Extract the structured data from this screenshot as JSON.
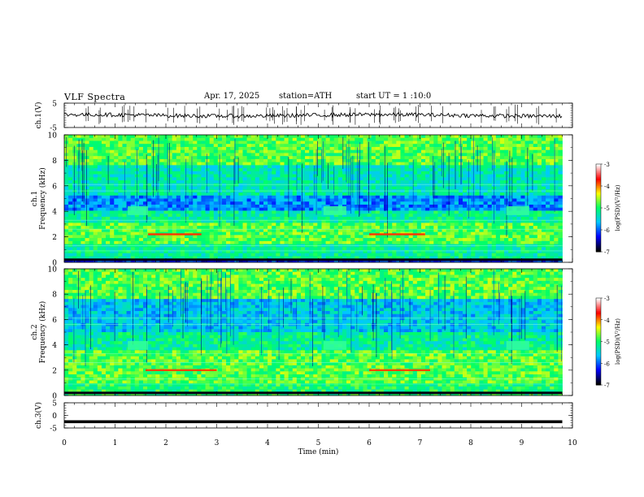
{
  "header": {
    "title": "VLF  Spectra",
    "date": "Apr. 17, 2025",
    "station": "station=ATH",
    "start": "start  UT  =   1  :10:0"
  },
  "chart_data": [
    {
      "type": "line",
      "id": "ch1-waveform",
      "ylabel": "ch.1(V)",
      "ylim": [
        -5,
        5
      ],
      "y_ticks": [
        "5",
        "-5"
      ],
      "xlim": [
        0,
        10
      ],
      "data_end_x": 9.8,
      "approx_mean": 0,
      "approx_noise_amplitude": 0.8
    },
    {
      "type": "heatmap",
      "id": "ch1-spectrogram",
      "ylabel": "ch.1\nFrequency (kHz)",
      "ylim": [
        0,
        10
      ],
      "y_ticks": [
        "0",
        "2",
        "4",
        "6",
        "8",
        "10"
      ],
      "xlim": [
        0,
        10
      ],
      "data_end_x": 9.8,
      "colorbar": {
        "label": "log(PSD)(V²/Hz)",
        "range": [
          -7,
          -3
        ],
        "ticks": [
          "-3",
          "-4",
          "-5",
          "-6",
          "-7"
        ],
        "colors": [
          "#000000",
          "#0000ff",
          "#00c8ff",
          "#00ff66",
          "#ffff00",
          "#ff0000",
          "#ffffff"
        ]
      },
      "boxes": [
        {
          "x": [
            1.25,
            1.65
          ],
          "f": [
            3.7,
            4.4
          ]
        },
        {
          "x": [
            5.1,
            5.55
          ],
          "f": [
            3.7,
            4.4
          ]
        },
        {
          "x": [
            8.7,
            9.15
          ],
          "f": [
            3.7,
            4.4
          ]
        }
      ],
      "bands": [
        {
          "x": [
            1.65,
            2.7
          ],
          "f": 2.2,
          "color": "#ff3300"
        },
        {
          "x": [
            6.0,
            7.1
          ],
          "f": 2.2,
          "color": "#ff3300"
        }
      ]
    },
    {
      "type": "heatmap",
      "id": "ch2-spectrogram",
      "ylabel": "ch.2\nFrequency (kHz)",
      "ylim": [
        0,
        10
      ],
      "y_ticks": [
        "0",
        "2",
        "4",
        "6",
        "8",
        "10"
      ],
      "xlim": [
        0,
        10
      ],
      "data_end_x": 9.8,
      "colorbar": {
        "label": "log(PSD)(V²/Hz)",
        "range": [
          -7,
          -3
        ],
        "ticks": [
          "-3",
          "-4",
          "-5",
          "-6",
          "-7"
        ],
        "colors": [
          "#000000",
          "#0000ff",
          "#00c8ff",
          "#00ff66",
          "#ffff00",
          "#ff0000",
          "#ffffff"
        ]
      },
      "boxes": [
        {
          "x": [
            1.25,
            1.65
          ],
          "f": [
            3.6,
            4.3
          ]
        },
        {
          "x": [
            5.1,
            5.55
          ],
          "f": [
            3.6,
            4.3
          ]
        },
        {
          "x": [
            8.7,
            9.15
          ],
          "f": [
            3.6,
            4.3
          ]
        }
      ],
      "bands": [
        {
          "x": [
            1.6,
            3.0
          ],
          "f": 2.0,
          "color": "#ff4400"
        },
        {
          "x": [
            6.0,
            7.2
          ],
          "f": 2.0,
          "color": "#ff4400"
        }
      ]
    },
    {
      "type": "line",
      "id": "ch3-waveform",
      "ylabel": "ch.3(V)",
      "ylim": [
        -5,
        5
      ],
      "y_ticks": [
        "5",
        "0",
        "-5"
      ],
      "xlim": [
        0,
        10
      ],
      "data_end_x": 9.8,
      "approx_mean": -2.5
    }
  ],
  "x_axis": {
    "label": "Time  (min)",
    "ticks": [
      "0",
      "1",
      "2",
      "3",
      "4",
      "5",
      "6",
      "7",
      "8",
      "9",
      "10"
    ]
  }
}
